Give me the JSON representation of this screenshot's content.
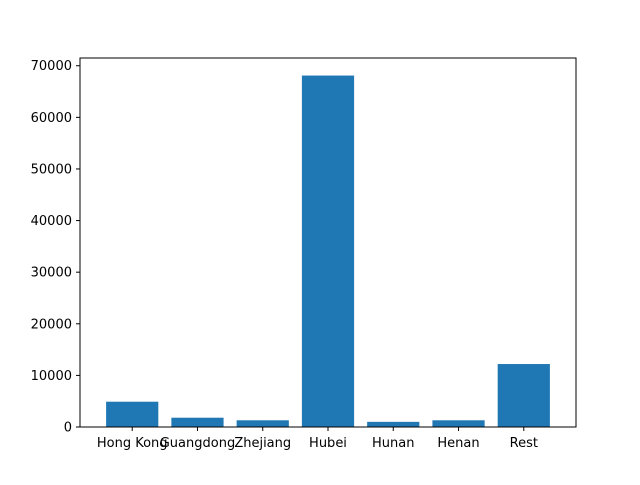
{
  "chart_data": {
    "type": "bar",
    "categories": [
      "Hong Kong",
      "Guangdong",
      "Zhejiang",
      "Hubei",
      "Hunan",
      "Henan",
      "Rest"
    ],
    "values": [
      4900,
      1800,
      1300,
      68100,
      1000,
      1300,
      12200
    ],
    "title": "",
    "xlabel": "",
    "ylabel": "",
    "ylim": [
      0,
      71500
    ],
    "yticks": [
      0,
      10000,
      20000,
      30000,
      40000,
      50000,
      60000,
      70000
    ],
    "grid": false,
    "legend": "none",
    "bar_color": "#1f77b4"
  }
}
